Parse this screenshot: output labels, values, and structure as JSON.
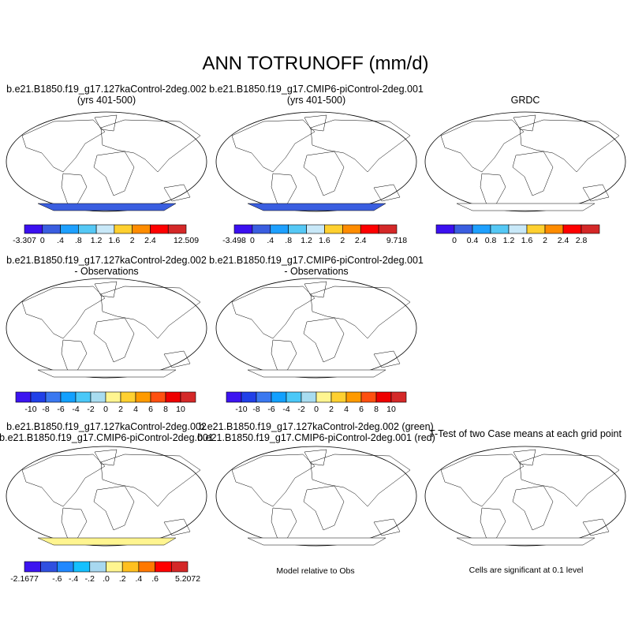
{
  "title": "ANN TOTRUNOFF (mm/d)",
  "panels": [
    {
      "line1": "b.e21.B1850.f19_g17.127kaControl-2deg.002",
      "line2": "(yrs 401-500)",
      "style": "model"
    },
    {
      "line1": "b.e21.B1850.f19_g17.CMIP6-piControl-2deg.001",
      "line2": "(yrs 401-500)",
      "style": "model"
    },
    {
      "line1": "GRDC",
      "line2": "",
      "style": "obs"
    },
    {
      "line1": "b.e21.B1850.f19_g17.127kaControl-2deg.002",
      "line2": "- Observations",
      "style": "diff"
    },
    {
      "line1": "b.e21.B1850.f19_g17.CMIP6-piControl-2deg.001",
      "line2": "- Observations",
      "style": "diff"
    },
    {
      "line1": "b.e21.B1850.f19_g17.127kaControl-2deg.002",
      "line2": "b.e21.B1850.f19_g17.CMIP6-piControl-2deg.001",
      "style": "casediff"
    },
    {
      "line1": "b.e21.B1850.f19_g17.127kaControl-2deg.002 (green)",
      "line2": "b.e21.B1850.f19_g17.CMIP6-piControl-2deg.001 (red)",
      "style": "relobs"
    },
    {
      "line1": "T-Test of two Case means at each grid point",
      "line2": "",
      "style": "ttest"
    }
  ],
  "notes": {
    "relobs": "Model relative to Obs",
    "ttest": "Cells are significant at 0.1 level"
  },
  "colorbars": [
    {
      "colors": [
        "#3b10f0",
        "#3a5ee0",
        "#1ea0ff",
        "#55c8f5",
        "#c8e8f8",
        "#ffd030",
        "#ff8c00",
        "#ff0000",
        "#d42828"
      ],
      "labels": [
        "-3.307",
        "0",
        ".4",
        ".8",
        "1.2",
        "1.6",
        "2",
        "2.4",
        "",
        "12.509"
      ]
    },
    {
      "colors": [
        "#3b10f0",
        "#3a5ee0",
        "#1ea0ff",
        "#55c8f5",
        "#c8e8f8",
        "#ffd030",
        "#ff8c00",
        "#ff0000",
        "#d42828"
      ],
      "labels": [
        "-3.498",
        "0",
        ".4",
        ".8",
        "1.2",
        "1.6",
        "2",
        "2.4",
        "",
        "9.718"
      ]
    },
    {
      "colors": [
        "#3b10f0",
        "#3a5ee0",
        "#1ea0ff",
        "#55c8f5",
        "#c8e8f8",
        "#ffd030",
        "#ff8c00",
        "#ff0000",
        "#d42828"
      ],
      "labels": [
        "",
        "0",
        "0.4",
        "0.8",
        "1.2",
        "1.6",
        "2",
        "2.4",
        "2.8",
        ""
      ]
    },
    {
      "colors": [
        "#3c14f0",
        "#2040e8",
        "#3a78f0",
        "#12a0ff",
        "#4ac8f8",
        "#a8dcf0",
        "#fff590",
        "#ffd030",
        "#ff9a00",
        "#ff5010",
        "#ee0000",
        "#d42828"
      ],
      "labels": [
        "",
        "-10",
        "-8",
        "-6",
        "-4",
        "-2",
        "0",
        "2",
        "4",
        "6",
        "8",
        "10",
        ""
      ]
    },
    {
      "colors": [
        "#3c14f0",
        "#2040e8",
        "#3a78f0",
        "#12a0ff",
        "#4ac8f8",
        "#a8dcf0",
        "#fff590",
        "#ffd030",
        "#ff9a00",
        "#ff5010",
        "#ee0000",
        "#d42828"
      ],
      "labels": [
        "",
        "-10",
        "-8",
        "-6",
        "-4",
        "-2",
        "0",
        "2",
        "4",
        "6",
        "8",
        "10",
        ""
      ]
    },
    {
      "colors": [
        "#3c14f0",
        "#3050e0",
        "#2088ff",
        "#14c0ff",
        "#a8d8f0",
        "#fff590",
        "#ffc020",
        "#ff7800",
        "#ff0000",
        "#d42828"
      ],
      "labels": [
        "-2.1677",
        "",
        "-.6",
        "-.4",
        "-.2",
        ".0",
        ".2",
        ".4",
        ".6",
        "",
        "5.2072"
      ]
    }
  ]
}
